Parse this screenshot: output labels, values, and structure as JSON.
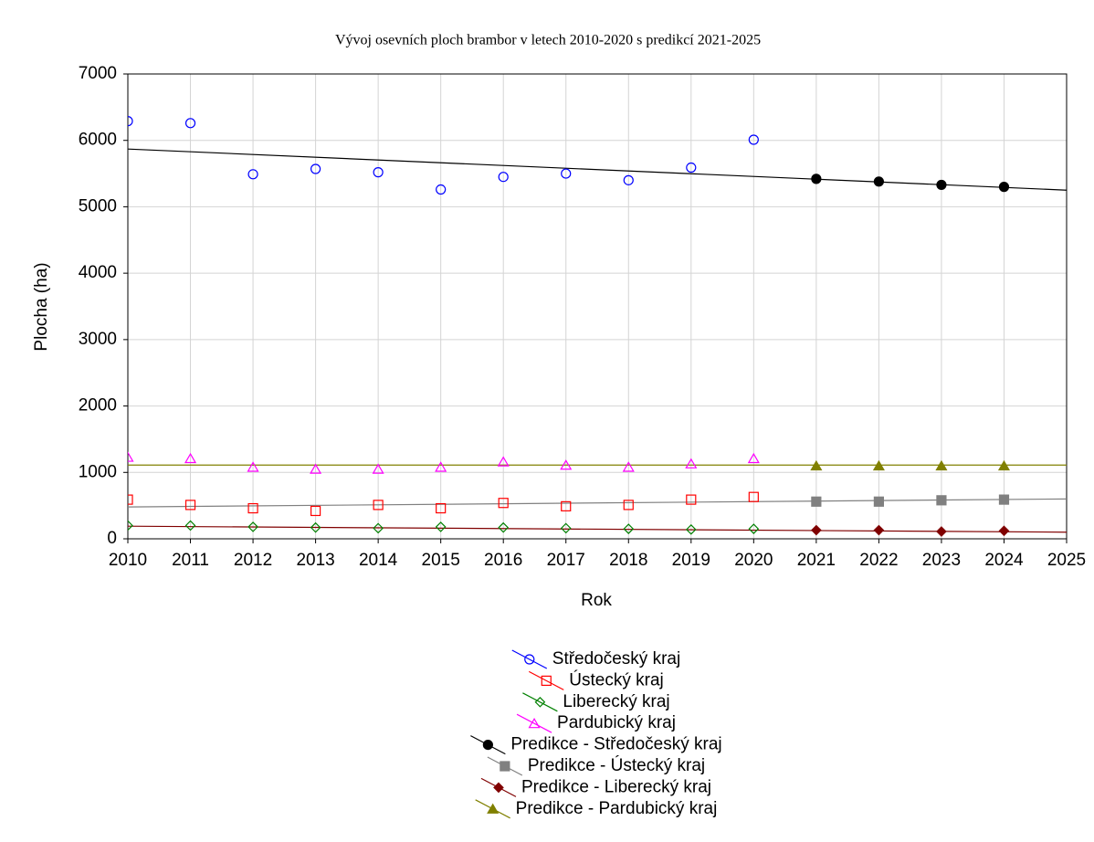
{
  "chart_data": {
    "type": "scatter",
    "title": "Vývoj osevních ploch brambor v letech 2010-2020 s predikcí 2021-2025",
    "x_label": "Rok",
    "y_label": "Plocha (ha)",
    "xlim": [
      2010,
      2025
    ],
    "xticks": [
      2010,
      2011,
      2012,
      2013,
      2014,
      2015,
      2016,
      2017,
      2018,
      2019,
      2020,
      2021,
      2022,
      2023,
      2024,
      2025
    ],
    "ylim": [
      0,
      7000
    ],
    "yticks": [
      0,
      1000,
      2000,
      3000,
      4000,
      5000,
      6000,
      7000
    ],
    "grid": true,
    "legend": "bottom",
    "series": [
      {
        "name": "Středočeský kraj",
        "color": "#0000ff",
        "marker": "circle",
        "filled": false,
        "x": [
          2010,
          2011,
          2012,
          2013,
          2014,
          2015,
          2016,
          2017,
          2018,
          2019,
          2020
        ],
        "values": [
          6290,
          6260,
          5490,
          5570,
          5520,
          5260,
          5450,
          5500,
          5400,
          5590,
          6010
        ]
      },
      {
        "name": "Ústecký kraj",
        "color": "#ff0000",
        "marker": "square",
        "filled": false,
        "x": [
          2010,
          2011,
          2012,
          2013,
          2014,
          2015,
          2016,
          2017,
          2018,
          2019,
          2020
        ],
        "values": [
          590,
          510,
          460,
          420,
          510,
          460,
          540,
          490,
          510,
          590,
          630
        ]
      },
      {
        "name": "Liberecký kraj",
        "color": "#008000",
        "marker": "diamond",
        "filled": false,
        "x": [
          2010,
          2011,
          2012,
          2013,
          2014,
          2015,
          2016,
          2017,
          2018,
          2019,
          2020
        ],
        "values": [
          200,
          200,
          180,
          170,
          160,
          180,
          170,
          160,
          150,
          140,
          150
        ]
      },
      {
        "name": "Pardubický kraj",
        "color": "#ff00ff",
        "marker": "triangle",
        "filled": false,
        "x": [
          2010,
          2011,
          2012,
          2013,
          2014,
          2015,
          2016,
          2017,
          2018,
          2019,
          2020
        ],
        "values": [
          1230,
          1210,
          1080,
          1050,
          1050,
          1080,
          1160,
          1110,
          1080,
          1130,
          1210
        ]
      },
      {
        "name": "Predikce - Středočeský kraj",
        "color": "#000000",
        "marker": "circle",
        "filled": true,
        "x": [
          2021,
          2022,
          2023,
          2024
        ],
        "values": [
          5420,
          5380,
          5330,
          5300
        ],
        "trend": {
          "x": [
            2010,
            2025
          ],
          "values": [
            5870,
            5250
          ]
        }
      },
      {
        "name": "Predikce - Ústecký kraj",
        "color": "#808080",
        "marker": "square",
        "filled": true,
        "x": [
          2021,
          2022,
          2023,
          2024
        ],
        "values": [
          560,
          560,
          580,
          590
        ],
        "trend": {
          "x": [
            2010,
            2025
          ],
          "values": [
            480,
            600
          ]
        }
      },
      {
        "name": "Predikce - Liberecký kraj",
        "color": "#800000",
        "marker": "diamond",
        "filled": true,
        "x": [
          2021,
          2022,
          2023,
          2024
        ],
        "values": [
          130,
          130,
          110,
          120
        ],
        "trend": {
          "x": [
            2010,
            2025
          ],
          "values": [
            190,
            100
          ]
        }
      },
      {
        "name": "Predikce - Pardubický kraj",
        "color": "#808000",
        "marker": "triangle",
        "filled": true,
        "x": [
          2021,
          2022,
          2023,
          2024
        ],
        "values": [
          1100,
          1100,
          1100,
          1100
        ],
        "trend": {
          "x": [
            2010,
            2025
          ],
          "values": [
            1110,
            1110
          ]
        }
      }
    ]
  }
}
